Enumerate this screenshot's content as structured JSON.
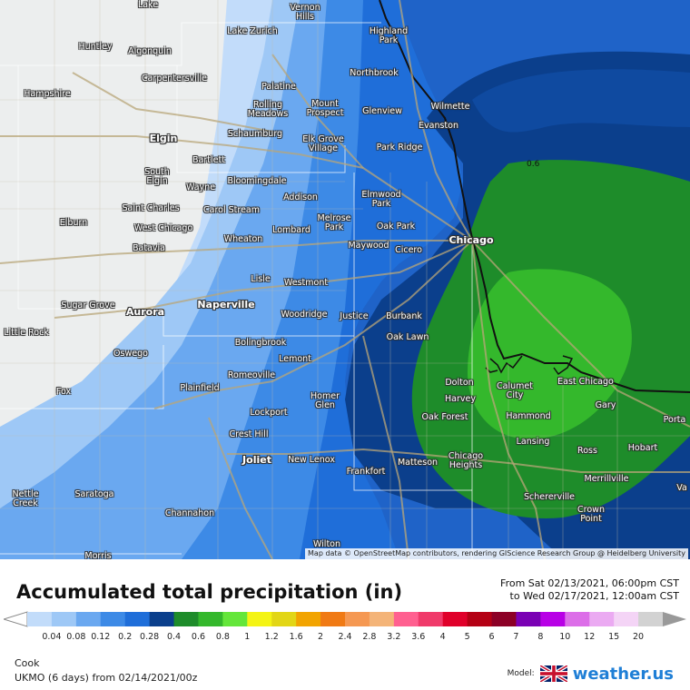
{
  "title": "Accumulated total precipitation (in)",
  "range_line1": "From Sat 02/13/2021, 06:00pm CST",
  "range_line2": "to Wed 02/17/2021, 12:00am CST",
  "attribution": "Map data © OpenStreetMap contributors, rendering GIScience Research Group @ Heidelberg University",
  "region": "Cook",
  "model_run": "UKMO (6 days) from  02/14/2021/00z",
  "brand": {
    "label": "Model:",
    "site": "weather.us",
    "flag_icon": "uk-flag-icon"
  },
  "contour_label": "0.6",
  "legend": {
    "ticks": [
      "0.04",
      "0.08",
      "0.12",
      "0.2",
      "0.28",
      "0.4",
      "0.6",
      "0.8",
      "1",
      "1.2",
      "1.6",
      "2",
      "2.4",
      "2.8",
      "3.2",
      "3.6",
      "4",
      "5",
      "6",
      "7",
      "8",
      "10",
      "12",
      "15",
      "20"
    ],
    "colors": [
      "#c2dcfa",
      "#9ec8f6",
      "#6aa8f0",
      "#3d8ae6",
      "#1f6ed9",
      "#0b3f8c",
      "#1e8c2a",
      "#34b82c",
      "#64e63a",
      "#f4f414",
      "#e2d616",
      "#f2a400",
      "#f07a14",
      "#f59852",
      "#f4b478",
      "#ff6090",
      "#f03a6a",
      "#e0002a",
      "#b40014",
      "#8c0026",
      "#7a00b4",
      "#b800e6",
      "#dc6ee8",
      "#ebaaf2",
      "#f4d4f6",
      "#d2d2d2"
    ]
  },
  "cities": [
    {
      "id": "lake",
      "name": "Lake",
      "big": false
    },
    {
      "id": "vernon-hills",
      "name": "Vernon\nHills",
      "big": false
    },
    {
      "id": "lake-zurich",
      "name": "Lake Zurich",
      "big": false
    },
    {
      "id": "highland-park",
      "name": "Highland\nPark",
      "big": false
    },
    {
      "id": "huntley",
      "name": "Huntley",
      "big": false
    },
    {
      "id": "algonquin",
      "name": "Algonquin",
      "big": false
    },
    {
      "id": "carpentersville",
      "name": "Carpentersville",
      "big": false
    },
    {
      "id": "northbrook",
      "name": "Northbrook",
      "big": false
    },
    {
      "id": "hampshire",
      "name": "Hampshire",
      "big": false
    },
    {
      "id": "palatine",
      "name": "Palatine",
      "big": false
    },
    {
      "id": "wilmette",
      "name": "Wilmette",
      "big": false
    },
    {
      "id": "rolling-meadows",
      "name": "Rolling\nMeadows",
      "big": false
    },
    {
      "id": "mount-prospect",
      "name": "Mount\nProspect",
      "big": false
    },
    {
      "id": "glenview",
      "name": "Glenview",
      "big": false
    },
    {
      "id": "evanston",
      "name": "Evanston",
      "big": false
    },
    {
      "id": "elgin",
      "name": "Elgin",
      "big": true
    },
    {
      "id": "schaumburg",
      "name": "Schaumburg",
      "big": false
    },
    {
      "id": "elk-grove-village",
      "name": "Elk Grove\nVillage",
      "big": false
    },
    {
      "id": "park-ridge",
      "name": "Park Ridge",
      "big": false
    },
    {
      "id": "bartlett",
      "name": "Bartlett",
      "big": false
    },
    {
      "id": "south-elgin",
      "name": "South\nElgin",
      "big": false
    },
    {
      "id": "wayne",
      "name": "Wayne",
      "big": false
    },
    {
      "id": "bloomingdale",
      "name": "Bloomingdale",
      "big": false
    },
    {
      "id": "addison",
      "name": "Addison",
      "big": false
    },
    {
      "id": "elmwood-park",
      "name": "Elmwood\nPark",
      "big": false
    },
    {
      "id": "saint-charles",
      "name": "Saint Charles",
      "big": false
    },
    {
      "id": "carol-stream",
      "name": "Carol Stream",
      "big": false
    },
    {
      "id": "elburn",
      "name": "Elburn",
      "big": false
    },
    {
      "id": "west-chicago",
      "name": "West Chicago",
      "big": false
    },
    {
      "id": "melrose-park",
      "name": "Melrose\nPark",
      "big": false
    },
    {
      "id": "oak-park",
      "name": "Oak Park",
      "big": false
    },
    {
      "id": "lombard",
      "name": "Lombard",
      "big": false
    },
    {
      "id": "chicago",
      "name": "Chicago",
      "big": true
    },
    {
      "id": "wheaton",
      "name": "Wheaton",
      "big": false
    },
    {
      "id": "maywood",
      "name": "Maywood",
      "big": false
    },
    {
      "id": "batavia",
      "name": "Batavia",
      "big": false
    },
    {
      "id": "cicero",
      "name": "Cicero",
      "big": false
    },
    {
      "id": "lisle",
      "name": "Lisle",
      "big": false
    },
    {
      "id": "westmont",
      "name": "Westmont",
      "big": false
    },
    {
      "id": "sugar-grove",
      "name": "Sugar Grove",
      "big": false
    },
    {
      "id": "naperville",
      "name": "Naperville",
      "big": true
    },
    {
      "id": "aurora",
      "name": "Aurora",
      "big": true
    },
    {
      "id": "woodridge",
      "name": "Woodridge",
      "big": false
    },
    {
      "id": "justice",
      "name": "Justice",
      "big": false
    },
    {
      "id": "burbank",
      "name": "Burbank",
      "big": false
    },
    {
      "id": "little-rock",
      "name": "Little Rock",
      "big": false
    },
    {
      "id": "oak-lawn",
      "name": "Oak Lawn",
      "big": false
    },
    {
      "id": "bolingbrook",
      "name": "Bolingbrook",
      "big": false
    },
    {
      "id": "oswego",
      "name": "Oswego",
      "big": false
    },
    {
      "id": "lemont",
      "name": "Lemont",
      "big": false
    },
    {
      "id": "romeoville",
      "name": "Romeoville",
      "big": false
    },
    {
      "id": "dolton",
      "name": "Dolton",
      "big": false
    },
    {
      "id": "east-chicago",
      "name": "East Chicago",
      "big": false
    },
    {
      "id": "calumet-city",
      "name": "Calumet\nCity",
      "big": false
    },
    {
      "id": "fox",
      "name": "Fox",
      "big": false
    },
    {
      "id": "plainfield",
      "name": "Plainfield",
      "big": false
    },
    {
      "id": "harvey",
      "name": "Harvey",
      "big": false
    },
    {
      "id": "homer-glen",
      "name": "Homer\nGlen",
      "big": false
    },
    {
      "id": "gary",
      "name": "Gary",
      "big": false
    },
    {
      "id": "lockport",
      "name": "Lockport",
      "big": false
    },
    {
      "id": "oak-forest",
      "name": "Oak Forest",
      "big": false
    },
    {
      "id": "hammond",
      "name": "Hammond",
      "big": false
    },
    {
      "id": "portage",
      "name": "Porta",
      "big": false
    },
    {
      "id": "crest-hill",
      "name": "Crest Hill",
      "big": false
    },
    {
      "id": "lansing",
      "name": "Lansing",
      "big": false
    },
    {
      "id": "hobart",
      "name": "Hobart",
      "big": false
    },
    {
      "id": "ross",
      "name": "Ross",
      "big": false
    },
    {
      "id": "chicago-heights",
      "name": "Chicago\nHeights",
      "big": false
    },
    {
      "id": "joliet",
      "name": "Joliet",
      "big": true
    },
    {
      "id": "new-lenox",
      "name": "New Lenox",
      "big": false
    },
    {
      "id": "matteson",
      "name": "Matteson",
      "big": false
    },
    {
      "id": "frankfort",
      "name": "Frankfort",
      "big": false
    },
    {
      "id": "merrillville",
      "name": "Merrillville",
      "big": false
    },
    {
      "id": "nettle-creek",
      "name": "Nettle\nCreek",
      "big": false
    },
    {
      "id": "saratoga",
      "name": "Saratoga",
      "big": false
    },
    {
      "id": "schererville",
      "name": "Schererville",
      "big": false
    },
    {
      "id": "valparaiso",
      "name": "Va",
      "big": false
    },
    {
      "id": "channahon",
      "name": "Channahon",
      "big": false
    },
    {
      "id": "crown-point",
      "name": "Crown\nPoint",
      "big": false
    },
    {
      "id": "wilton",
      "name": "Wilton",
      "big": false
    },
    {
      "id": "morris",
      "name": "Morris",
      "big": false
    }
  ]
}
